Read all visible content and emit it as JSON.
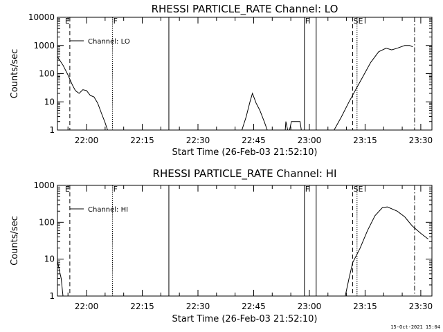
{
  "footer": {
    "stamp": "15-Oct-2021 15:04"
  },
  "chart_data": [
    {
      "type": "line",
      "title": "RHESSI PARTICLE_RATE Channel: LO",
      "xlabel": "Start Time (26-Feb-03 21:52:10)",
      "ylabel": "Counts/sec",
      "y_scale": "log",
      "ylim": [
        1,
        10000
      ],
      "y_ticks": [
        1,
        10,
        100,
        1000,
        10000
      ],
      "y_tick_labels": [
        "1",
        "10",
        "100",
        "1000",
        "10000"
      ],
      "xlim": [
        "21:52:10",
        "23:33:00"
      ],
      "x_ticks": [
        "22:00",
        "22:15",
        "22:30",
        "22:45",
        "23:00",
        "23:15",
        "23:30"
      ],
      "x_tick_labels": [
        "22:00",
        "22:15",
        "22:30",
        "22:45",
        "23:00",
        "23:15",
        "23:30"
      ],
      "legend": {
        "position": "top-left",
        "entries": [
          "Channel: LO"
        ]
      },
      "markers": [
        {
          "time": "21:54:00",
          "style": "none",
          "label": "E"
        },
        {
          "time": "21:55:30",
          "style": "dashed",
          "label": ""
        },
        {
          "time": "22:07:00",
          "style": "dotted",
          "label": "F"
        },
        {
          "time": "22:22:10",
          "style": "solid",
          "label": ""
        },
        {
          "time": "22:58:40",
          "style": "solid",
          "label": "F"
        },
        {
          "time": "23:01:50",
          "style": "solid",
          "label": ""
        },
        {
          "time": "23:11:40",
          "style": "dashed",
          "label": "SE"
        },
        {
          "time": "23:12:50",
          "style": "dotted",
          "label": ""
        },
        {
          "time": "23:28:20",
          "style": "dashdot",
          "label": ""
        }
      ],
      "series": [
        {
          "segments": [
            [
              [
                "21:52:10",
                400
              ],
              [
                "21:53:40",
                200
              ],
              [
                "21:55:00",
                90
              ],
              [
                "21:56:10",
                40
              ],
              [
                "21:57:00",
                25
              ],
              [
                "21:58:00",
                20
              ],
              [
                "21:59:00",
                27
              ],
              [
                "22:00:00",
                25
              ],
              [
                "22:01:00",
                17
              ],
              [
                "22:02:00",
                15
              ],
              [
                "22:03:00",
                9
              ],
              [
                "22:04:00",
                4
              ],
              [
                "22:05:00",
                1.8
              ],
              [
                "22:05:40",
                1
              ]
            ],
            [
              [
                "22:41:50",
                1
              ],
              [
                "22:43:00",
                3
              ],
              [
                "22:44:00",
                10
              ],
              [
                "22:44:40",
                20
              ],
              [
                "22:45:40",
                9
              ],
              [
                "22:46:40",
                5
              ],
              [
                "22:47:50",
                2
              ],
              [
                "22:48:40",
                1
              ]
            ],
            [
              [
                "22:53:30",
                1
              ],
              [
                "22:53:40",
                2
              ],
              [
                "22:54:10",
                1
              ]
            ],
            [
              [
                "22:54:40",
                1
              ],
              [
                "22:55:10",
                2
              ],
              [
                "22:57:30",
                2
              ],
              [
                "22:57:50",
                1
              ]
            ],
            [
              [
                "23:06:40",
                1
              ],
              [
                "23:08:40",
                3
              ],
              [
                "23:10:40",
                10
              ],
              [
                "23:12:40",
                30
              ],
              [
                "23:14:40",
                90
              ],
              [
                "23:16:30",
                250
              ],
              [
                "23:18:40",
                600
              ],
              [
                "23:20:40",
                800
              ],
              [
                "23:22:10",
                700
              ],
              [
                "23:23:40",
                800
              ],
              [
                "23:25:40",
                1000
              ],
              [
                "23:27:00",
                1000
              ],
              [
                "23:27:50",
                900
              ]
            ]
          ]
        }
      ]
    },
    {
      "type": "line",
      "title": "RHESSI PARTICLE_RATE Channel: HI",
      "xlabel": "Start Time (26-Feb-03 21:52:10)",
      "ylabel": "Counts/sec",
      "y_scale": "log",
      "ylim": [
        1,
        1000
      ],
      "y_ticks": [
        1,
        10,
        100,
        1000
      ],
      "y_tick_labels": [
        "1",
        "10",
        "100",
        "1000"
      ],
      "xlim": [
        "21:52:10",
        "23:33:00"
      ],
      "x_ticks": [
        "22:00",
        "22:15",
        "22:30",
        "22:45",
        "23:00",
        "23:15",
        "23:30"
      ],
      "x_tick_labels": [
        "22:00",
        "22:15",
        "22:30",
        "22:45",
        "23:00",
        "23:15",
        "23:30"
      ],
      "legend": {
        "position": "top-left",
        "entries": [
          "Channel: HI"
        ]
      },
      "markers": [
        {
          "time": "21:54:00",
          "style": "none",
          "label": "E"
        },
        {
          "time": "21:55:30",
          "style": "dashed",
          "label": ""
        },
        {
          "time": "22:07:00",
          "style": "dotted",
          "label": "F"
        },
        {
          "time": "22:22:10",
          "style": "solid",
          "label": ""
        },
        {
          "time": "22:58:40",
          "style": "solid",
          "label": "F"
        },
        {
          "time": "23:01:50",
          "style": "solid",
          "label": ""
        },
        {
          "time": "23:11:40",
          "style": "dashed",
          "label": "SE"
        },
        {
          "time": "23:12:50",
          "style": "dotted",
          "label": ""
        },
        {
          "time": "23:28:20",
          "style": "dashdot",
          "label": ""
        }
      ],
      "series": [
        {
          "segments": [
            [
              [
                "21:52:10",
                9
              ],
              [
                "21:52:40",
                5
              ],
              [
                "21:53:10",
                3
              ],
              [
                "21:53:40",
                1
              ]
            ],
            [
              [
                "23:09:40",
                1
              ],
              [
                "23:10:40",
                3
              ],
              [
                "23:11:40",
                8
              ],
              [
                "23:13:40",
                20
              ],
              [
                "23:15:40",
                60
              ],
              [
                "23:17:40",
                150
              ],
              [
                "23:19:40",
                250
              ],
              [
                "23:21:00",
                260
              ],
              [
                "23:23:40",
                200
              ],
              [
                "23:25:40",
                140
              ],
              [
                "23:27:40",
                80
              ],
              [
                "23:30:00",
                50
              ],
              [
                "23:32:00",
                35
              ]
            ]
          ]
        }
      ]
    }
  ]
}
